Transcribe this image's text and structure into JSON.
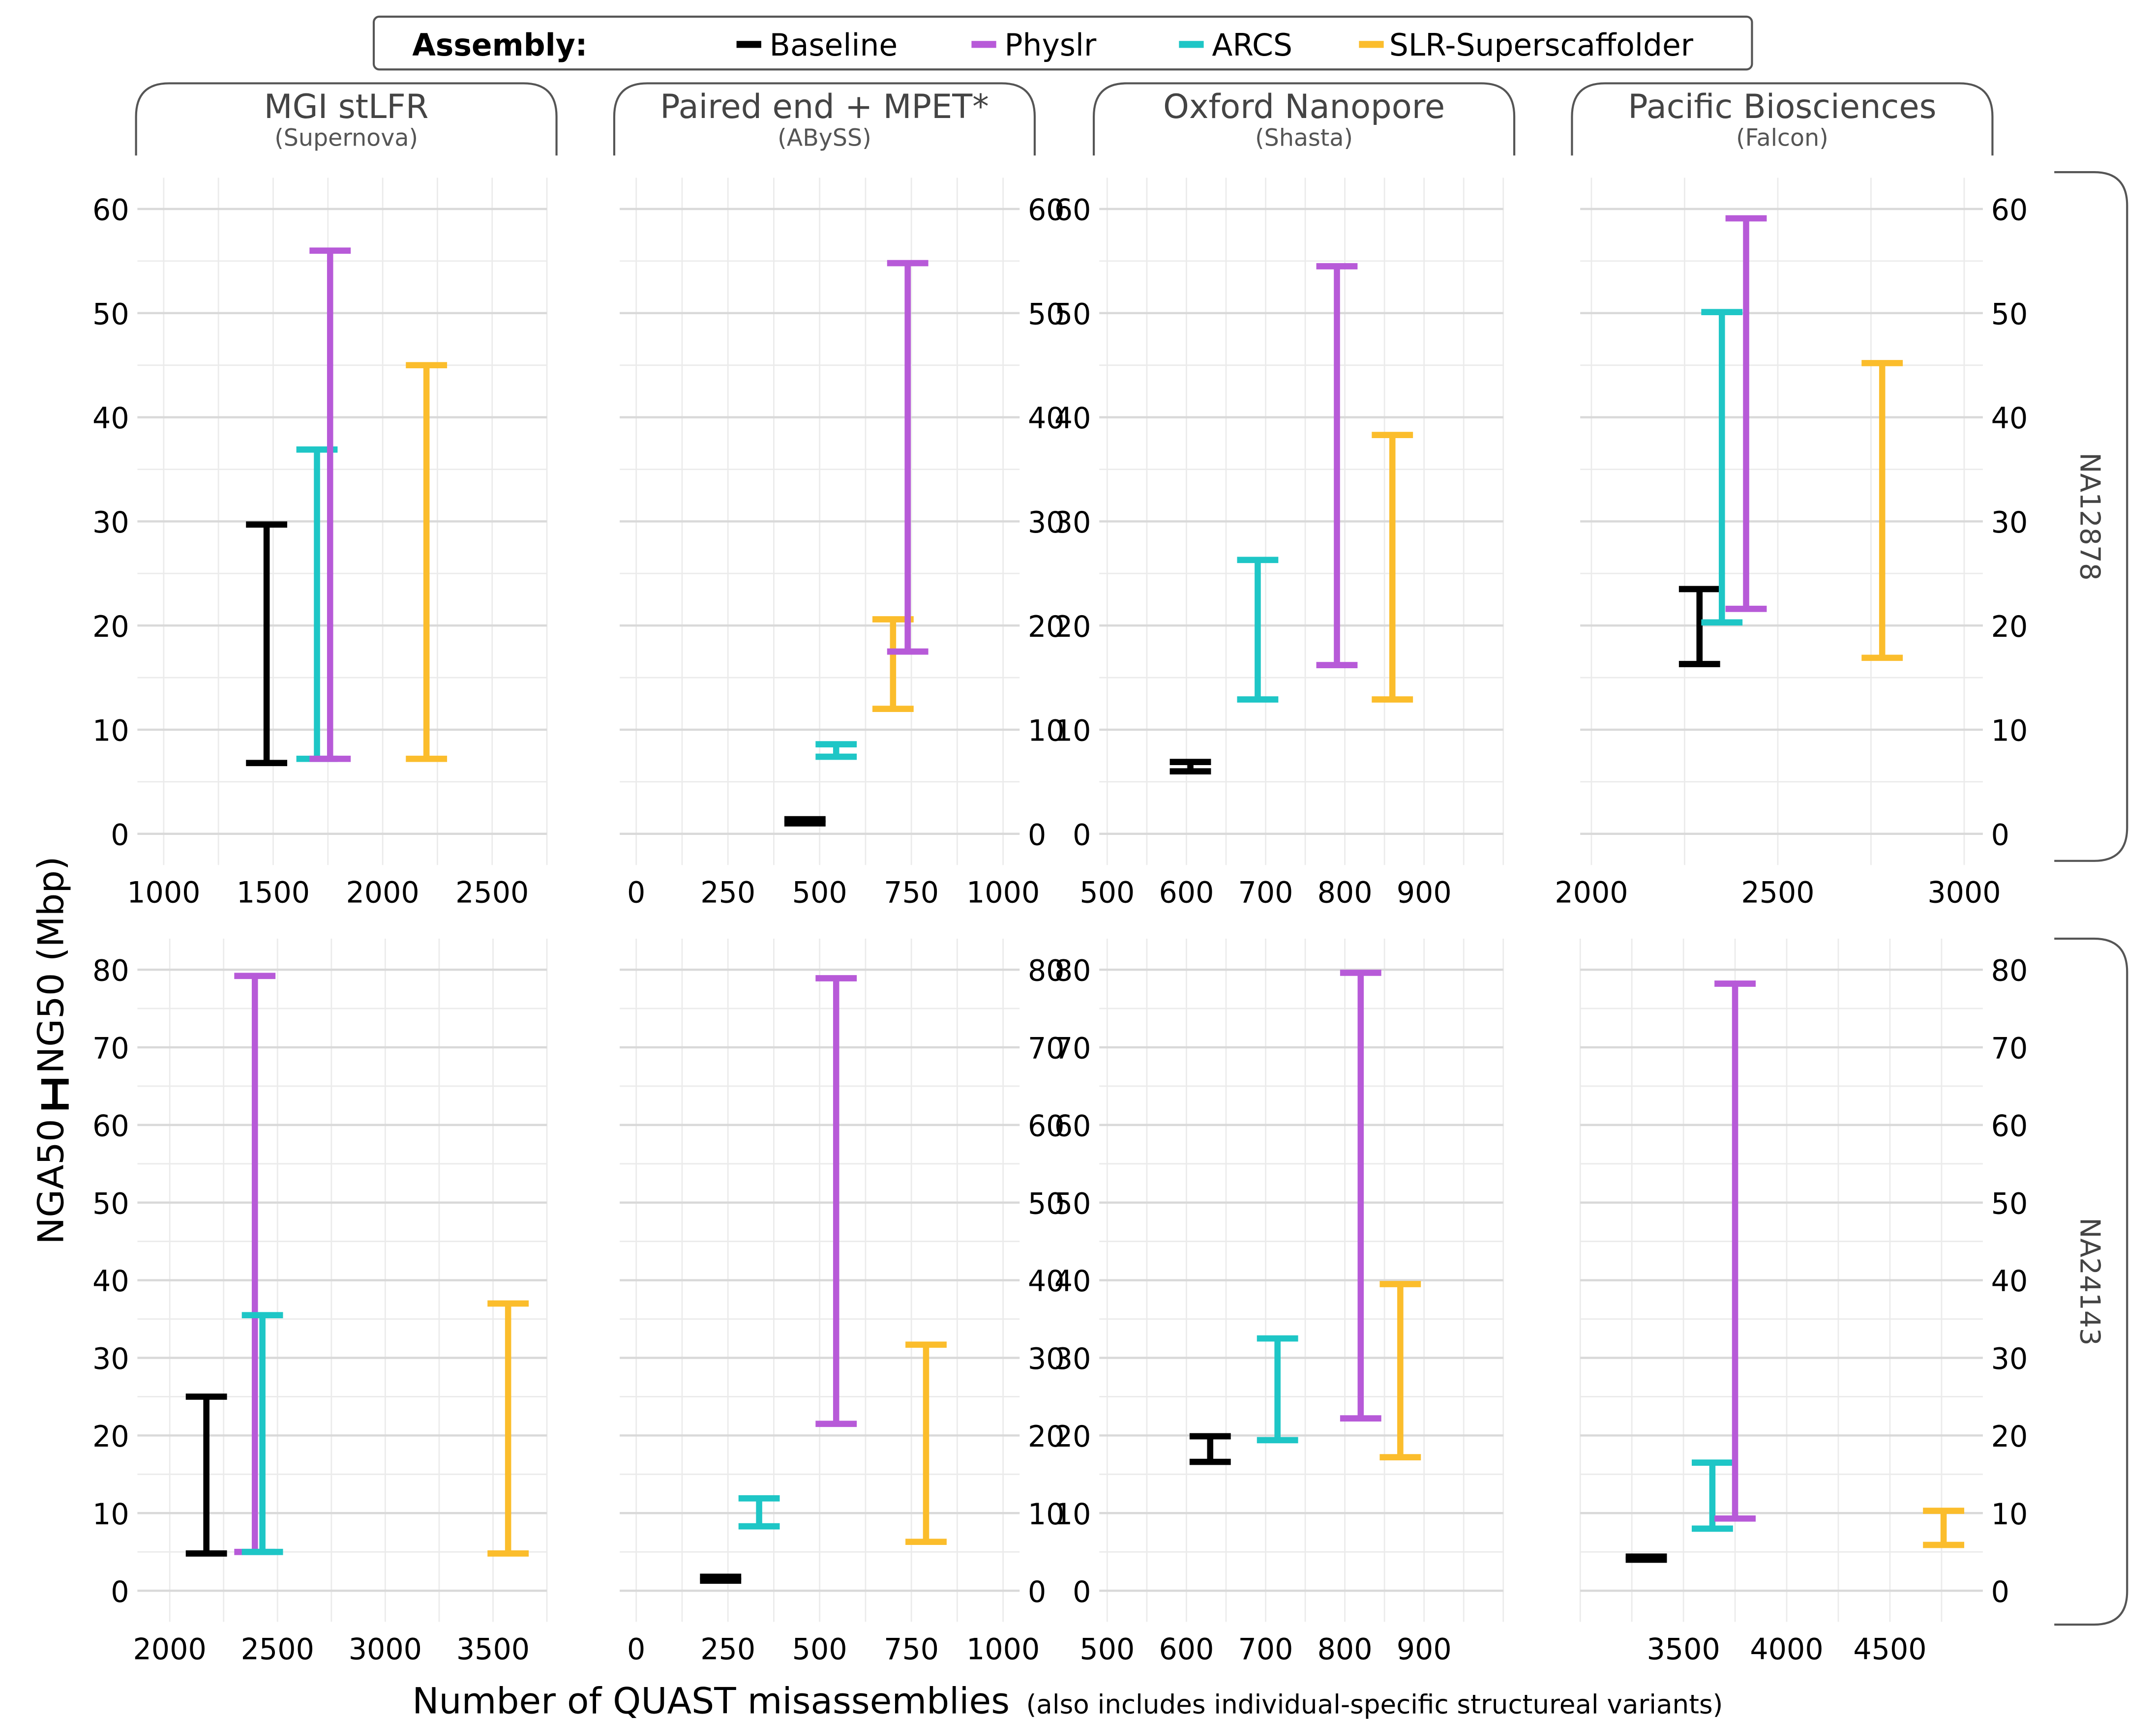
{
  "legend": {
    "title": "Assembly:",
    "items": [
      {
        "label": "Baseline",
        "color": "#000000"
      },
      {
        "label": "Physlr",
        "color": "#b75ad8"
      },
      {
        "label": "ARCS",
        "color": "#1ec6c6"
      },
      {
        "label": "SLR-Superscaffolder",
        "color": "#fbbd2c"
      }
    ]
  },
  "x_axis_title": "Number of QUAST misassemblies",
  "x_axis_subtitle": "(also includes individual-specific structureal variants)",
  "y_axis_title": "NGA50",
  "y_axis_title_2": "NG50 (Mbp)",
  "columns": [
    {
      "title": "MGI stLFR",
      "subtitle": "(Supernova)"
    },
    {
      "title": "Paired end + MPET*",
      "subtitle": "(ABySS)"
    },
    {
      "title": "Oxford Nanopore",
      "subtitle": "(Shasta)"
    },
    {
      "title": "Pacific Biosciences",
      "subtitle": "(Falcon)"
    }
  ],
  "rows": [
    {
      "label": "NA12878"
    },
    {
      "label": "NA24143"
    }
  ],
  "chart_data": [
    {
      "type": "errorbar",
      "row": "NA12878",
      "column": "MGI stLFR",
      "xlim": [
        880,
        2750
      ],
      "ylim": [
        -3,
        63
      ],
      "xticks": [
        1000,
        1500,
        2000,
        2500
      ],
      "yticks": [
        0,
        10,
        20,
        30,
        40,
        50,
        60
      ],
      "series": [
        {
          "name": "Baseline",
          "x": 1470,
          "ymin": 6.8,
          "ymax": 29.7
        },
        {
          "name": "ARCS",
          "x": 1700,
          "ymin": 7.2,
          "ymax": 36.9
        },
        {
          "name": "Physlr",
          "x": 1760,
          "ymin": 7.2,
          "ymax": 56.0
        },
        {
          "name": "SLR-Superscaffolder",
          "x": 2200,
          "ymin": 7.2,
          "ymax": 45.0
        }
      ]
    },
    {
      "type": "errorbar",
      "row": "NA12878",
      "column": "Paired end + MPET*",
      "xlim": [
        -45,
        1045
      ],
      "ylim": [
        -3,
        63
      ],
      "xticks": [
        0,
        250,
        500,
        750,
        1000
      ],
      "yticks": [
        0,
        10,
        20,
        30,
        40,
        50,
        60
      ],
      "series": [
        {
          "name": "Baseline",
          "x": 460,
          "ymin": 1.0,
          "ymax": 1.4
        },
        {
          "name": "ARCS",
          "x": 545,
          "ymin": 7.4,
          "ymax": 8.6
        },
        {
          "name": "SLR-Superscaffolder",
          "x": 700,
          "ymin": 12.0,
          "ymax": 20.6
        },
        {
          "name": "Physlr",
          "x": 740,
          "ymin": 17.5,
          "ymax": 54.8
        }
      ]
    },
    {
      "type": "errorbar",
      "row": "NA12878",
      "column": "Oxford Nanopore",
      "xlim": [
        490,
        1000
      ],
      "ylim": [
        -3,
        63
      ],
      "xticks": [
        500,
        600,
        700,
        800,
        900
      ],
      "yticks": [
        0,
        10,
        20,
        30,
        40,
        50,
        60
      ],
      "series": [
        {
          "name": "Baseline",
          "x": 605,
          "ymin": 6.0,
          "ymax": 6.9
        },
        {
          "name": "ARCS",
          "x": 690,
          "ymin": 12.9,
          "ymax": 26.3
        },
        {
          "name": "Physlr",
          "x": 790,
          "ymin": 16.2,
          "ymax": 54.5
        },
        {
          "name": "SLR-Superscaffolder",
          "x": 860,
          "ymin": 12.9,
          "ymax": 38.3
        }
      ]
    },
    {
      "type": "errorbar",
      "row": "NA12878",
      "column": "Pacific Biosciences",
      "xlim": [
        1970,
        3050
      ],
      "ylim": [
        -3,
        63
      ],
      "xticks": [
        2000,
        2500,
        3000
      ],
      "yticks": [
        0,
        10,
        20,
        30,
        40,
        50,
        60
      ],
      "series": [
        {
          "name": "Baseline",
          "x": 2290,
          "ymin": 16.3,
          "ymax": 23.5
        },
        {
          "name": "ARCS",
          "x": 2350,
          "ymin": 20.3,
          "ymax": 50.1
        },
        {
          "name": "Physlr",
          "x": 2415,
          "ymin": 21.6,
          "ymax": 59.1
        },
        {
          "name": "SLR-Superscaffolder",
          "x": 2780,
          "ymin": 16.9,
          "ymax": 45.2
        }
      ]
    },
    {
      "type": "errorbar",
      "row": "NA24143",
      "column": "MGI stLFR",
      "xlim": [
        1850,
        3750
      ],
      "ylim": [
        -4,
        84
      ],
      "xticks": [
        2000,
        2500,
        3000,
        3500
      ],
      "yticks": [
        0,
        10,
        20,
        30,
        40,
        50,
        60,
        70,
        80
      ],
      "series": [
        {
          "name": "Baseline",
          "x": 2170,
          "ymin": 4.8,
          "ymax": 25.0
        },
        {
          "name": "Physlr",
          "x": 2395,
          "ymin": 5.0,
          "ymax": 79.2
        },
        {
          "name": "ARCS",
          "x": 2430,
          "ymin": 5.0,
          "ymax": 35.5
        },
        {
          "name": "SLR-Superscaffolder",
          "x": 3570,
          "ymin": 4.8,
          "ymax": 37.0
        }
      ]
    },
    {
      "type": "errorbar",
      "row": "NA24143",
      "column": "Paired end + MPET*",
      "xlim": [
        -45,
        1045
      ],
      "ylim": [
        -4,
        84
      ],
      "xticks": [
        0,
        250,
        500,
        750,
        1000
      ],
      "yticks": [
        0,
        10,
        20,
        30,
        40,
        50,
        60,
        70,
        80
      ],
      "series": [
        {
          "name": "Baseline",
          "x": 230,
          "ymin": 1.3,
          "ymax": 1.8
        },
        {
          "name": "ARCS",
          "x": 335,
          "ymin": 8.3,
          "ymax": 11.9
        },
        {
          "name": "Physlr",
          "x": 545,
          "ymin": 21.5,
          "ymax": 78.9
        },
        {
          "name": "SLR-Superscaffolder",
          "x": 790,
          "ymin": 6.3,
          "ymax": 31.7
        }
      ]
    },
    {
      "type": "errorbar",
      "row": "NA24143",
      "column": "Oxford Nanopore",
      "xlim": [
        490,
        1000
      ],
      "ylim": [
        -4,
        84
      ],
      "xticks": [
        500,
        600,
        700,
        800,
        900
      ],
      "yticks": [
        0,
        10,
        20,
        30,
        40,
        50,
        60,
        70,
        80
      ],
      "series": [
        {
          "name": "Baseline",
          "x": 630,
          "ymin": 16.6,
          "ymax": 19.9
        },
        {
          "name": "ARCS",
          "x": 715,
          "ymin": 19.4,
          "ymax": 32.5
        },
        {
          "name": "Physlr",
          "x": 820,
          "ymin": 22.2,
          "ymax": 79.6
        },
        {
          "name": "SLR-Superscaffolder",
          "x": 870,
          "ymin": 17.2,
          "ymax": 39.5
        }
      ]
    },
    {
      "type": "errorbar",
      "row": "NA24143",
      "column": "Pacific Biosciences",
      "xlim": [
        3000,
        4950
      ],
      "ylim": [
        -4,
        84
      ],
      "xticks": [
        3500,
        4000,
        4500
      ],
      "yticks": [
        0,
        10,
        20,
        30,
        40,
        50,
        60,
        70,
        80
      ],
      "series": [
        {
          "name": "Baseline",
          "x": 3320,
          "ymin": 4.0,
          "ymax": 4.4
        },
        {
          "name": "ARCS",
          "x": 3640,
          "ymin": 8.0,
          "ymax": 16.5
        },
        {
          "name": "Physlr",
          "x": 3750,
          "ymin": 9.3,
          "ymax": 78.2
        },
        {
          "name": "SLR-Superscaffolder",
          "x": 4760,
          "ymin": 5.9,
          "ymax": 10.3
        }
      ]
    }
  ]
}
